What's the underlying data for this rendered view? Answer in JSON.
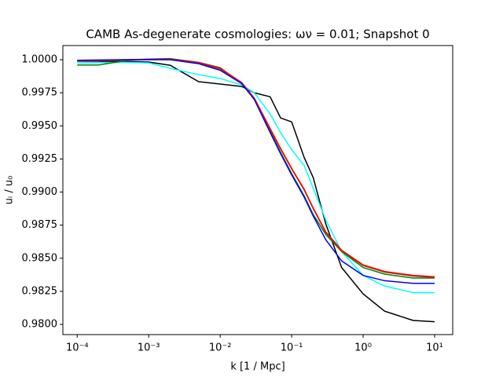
{
  "chart_data": {
    "type": "line",
    "title": "CAMB As-degenerate cosmologies: ων = 0.01; Snapshot 0",
    "xlabel": "k [1 / Mpc]",
    "ylabel": "uᵢ / u₀",
    "xscale": "log",
    "x": [
      0.0001,
      0.0002,
      0.0005,
      0.001,
      0.002,
      0.005,
      0.01,
      0.02,
      0.03,
      0.05,
      0.07,
      0.1,
      0.15,
      0.2,
      0.3,
      0.5,
      1,
      2,
      5,
      10
    ],
    "series": [
      {
        "color": "#000000",
        "values": [
          0.99988,
          0.99988,
          0.99986,
          0.99982,
          0.99958,
          0.99834,
          0.99816,
          0.99798,
          0.9975,
          0.9972,
          0.9956,
          0.9953,
          0.9926,
          0.9911,
          0.9876,
          0.9843,
          0.9823,
          0.981,
          0.9803,
          0.9802
        ]
      },
      {
        "color": "#00ffff",
        "values": [
          0.99976,
          0.99978,
          0.9998,
          0.99976,
          0.99935,
          0.99887,
          0.99858,
          0.9981,
          0.9975,
          0.9959,
          0.9945,
          0.9932,
          0.992,
          0.9903,
          0.9879,
          0.9855,
          0.9837,
          0.9829,
          0.9824,
          0.9824
        ]
      },
      {
        "color": "#008000",
        "values": [
          0.9996,
          0.9996,
          0.99995,
          1.00005,
          1.00008,
          0.9998,
          0.9994,
          0.9982,
          0.997,
          0.9946,
          0.993,
          0.9914,
          0.9897,
          0.9883,
          0.9868,
          0.9855,
          0.9843,
          0.9838,
          0.9835,
          0.9835
        ]
      },
      {
        "color": "#8b4513",
        "values": [
          0.9999,
          0.99992,
          0.99996,
          1.0,
          1.0,
          0.99974,
          0.9993,
          0.99822,
          0.99705,
          0.99475,
          0.99325,
          0.99175,
          0.99015,
          0.98875,
          0.98695,
          0.98555,
          0.98445,
          0.98395,
          0.98365,
          0.98355
        ]
      },
      {
        "color": "#ff0000",
        "values": [
          0.99994,
          0.99996,
          1.0,
          1.00004,
          1.00004,
          0.99978,
          0.99935,
          0.99828,
          0.9971,
          0.9948,
          0.9933,
          0.9918,
          0.9902,
          0.9888,
          0.987,
          0.9856,
          0.9845,
          0.984,
          0.9837,
          0.9836
        ]
      },
      {
        "color": "#0000ff",
        "values": [
          0.99996,
          0.99998,
          1.0,
          1.00002,
          1.0,
          0.9997,
          0.9992,
          0.9982,
          0.997,
          0.9945,
          0.9929,
          0.9913,
          0.9896,
          0.9882,
          0.9864,
          0.9848,
          0.9837,
          0.9833,
          0.9831,
          0.9831
        ]
      }
    ],
    "xlim": [
      6.3e-05,
      17.9
    ],
    "ylim": [
      0.97923,
      1.00107
    ],
    "xticks": [
      {
        "value": 0.0001,
        "label": "10⁻⁴"
      },
      {
        "value": 0.001,
        "label": "10⁻³"
      },
      {
        "value": 0.01,
        "label": "10⁻²"
      },
      {
        "value": 0.1,
        "label": "10⁻¹"
      },
      {
        "value": 1,
        "label": "10⁰"
      },
      {
        "value": 10,
        "label": "10¹"
      }
    ],
    "yticks": [
      {
        "value": 0.98,
        "label": "0.9800"
      },
      {
        "value": 0.9825,
        "label": "0.9825"
      },
      {
        "value": 0.985,
        "label": "0.9850"
      },
      {
        "value": 0.9875,
        "label": "0.9875"
      },
      {
        "value": 0.99,
        "label": "0.9900"
      },
      {
        "value": 0.9925,
        "label": "0.9925"
      },
      {
        "value": 0.995,
        "label": "0.9950"
      },
      {
        "value": 0.9975,
        "label": "0.9975"
      },
      {
        "value": 1.0,
        "label": "1.0000"
      }
    ],
    "grid": false
  }
}
